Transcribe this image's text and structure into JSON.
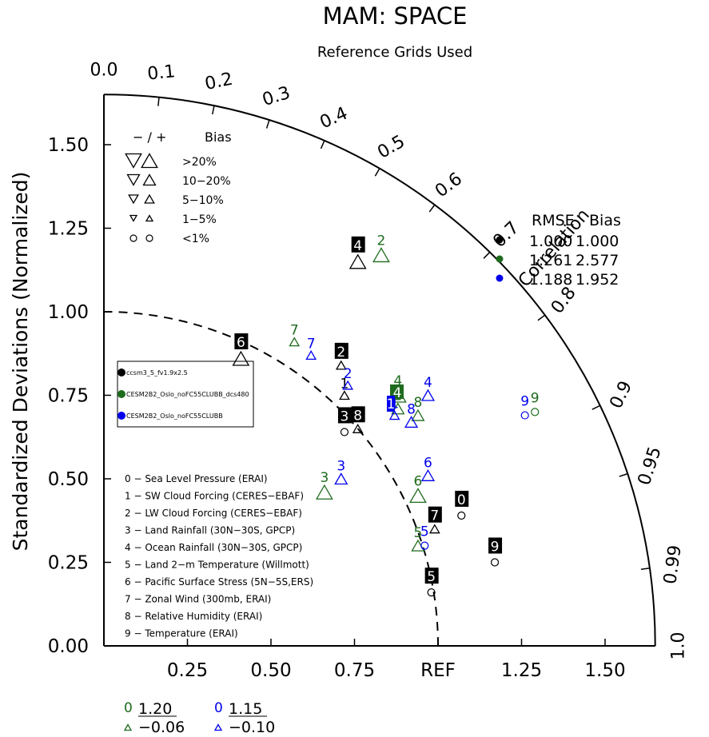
{
  "chart_data": {
    "type": "scatter",
    "subtype": "taylor-diagram",
    "title": "MAM: SPACE",
    "subtitle": "Reference Grids Used",
    "ylabel": "Standardized Deviations (Normalized)",
    "correlation_label": "Correlation",
    "x_ticks": [
      "0.25",
      "0.50",
      "0.75",
      "REF",
      "1.25",
      "1.50"
    ],
    "y_ticks": [
      "0.00",
      "0.25",
      "0.50",
      "0.75",
      "1.00",
      "1.25",
      "1.50"
    ],
    "corr_ticks": [
      "0.0",
      "0.1",
      "0.2",
      "0.3",
      "0.4",
      "0.5",
      "0.6",
      "0.7",
      "0.8",
      "0.9",
      "0.95",
      "0.99",
      "1.0"
    ],
    "max_std": 1.65,
    "bias_legend": {
      "header_symbols": "−  /  +",
      "header_label": "Bias",
      "rows": [
        ">20%",
        "10−20%",
        "5−10%",
        "1−5%",
        "<1%"
      ]
    },
    "rmse_table": {
      "headers": [
        "RMSE",
        "Bias"
      ],
      "rows": [
        {
          "rmse": "1.000",
          "bias": "1.000",
          "color": "#000000"
        },
        {
          "rmse": "1.261",
          "bias": "2.577",
          "color": "#1e6b1e"
        },
        {
          "rmse": "1.188",
          "bias": "1.952",
          "color": "#0000ee"
        }
      ]
    },
    "case_legend": [
      {
        "name": "ccsm3_5_fv1.9x2.5",
        "color": "#000000"
      },
      {
        "name": "CESM2B2_Oslo_noFC55CLUBB_dcs480",
        "color": "#1e6b1e"
      },
      {
        "name": "CESM2B2_Oslo_noFC55CLUBB",
        "color": "#0000ee"
      }
    ],
    "variables": [
      "0 − Sea Level Pressure (ERAI)",
      "1 − SW Cloud Forcing (CERES−EBAF)",
      "2 − LW Cloud Forcing (CERES−EBAF)",
      "3 − Land Rainfall (30N−30S, GPCP)",
      "4 − Ocean Rainfall (30N−30S, GPCP)",
      "5 − Land 2−m Temperature (Willmott)",
      "6 − Pacific Surface Stress (5N−5S,ERS)",
      "7 − Zonal Wind (300mb, ERAI)",
      "8 − Relative Humidity (ERAI)",
      "9 − Temperature (ERAI)"
    ],
    "series": [
      {
        "name": "ccsm3_5_fv1.9x2.5",
        "color": "#000000",
        "points": [
          {
            "label": "0",
            "x": 1.07,
            "y": 0.39,
            "marker": "circle",
            "size": 4
          },
          {
            "label": "1",
            "x": 0.72,
            "y": 0.75,
            "marker": "up",
            "size": 3
          },
          {
            "label": "2",
            "x": 0.71,
            "y": 0.84,
            "marker": "up",
            "size": 3
          },
          {
            "label": "3",
            "x": 0.72,
            "y": 0.64,
            "marker": "circle",
            "size": 4
          },
          {
            "label": "4",
            "x": 0.76,
            "y": 1.15,
            "marker": "up",
            "size": 1
          },
          {
            "label": "5",
            "x": 0.98,
            "y": 0.16,
            "marker": "circle",
            "size": 4
          },
          {
            "label": "6",
            "x": 0.41,
            "y": 0.86,
            "marker": "up",
            "size": 1
          },
          {
            "label": "7",
            "x": 0.99,
            "y": 0.35,
            "marker": "up",
            "size": 3
          },
          {
            "label": "8",
            "x": 0.76,
            "y": 0.65,
            "marker": "up",
            "size": 3
          },
          {
            "label": "9",
            "x": 1.17,
            "y": 0.25,
            "marker": "circle",
            "size": 4
          }
        ]
      },
      {
        "name": "CESM2B2_Oslo_noFC55CLUBB_dcs480",
        "color": "#1e6b1e",
        "points": [
          {
            "label": "1",
            "x": 0.88,
            "y": 0.71,
            "marker": "up",
            "size": 2
          },
          {
            "label": "2",
            "x": 0.83,
            "y": 1.17,
            "marker": "up",
            "size": 1
          },
          {
            "label": "3",
            "x": 0.66,
            "y": 0.46,
            "marker": "up",
            "size": 1
          },
          {
            "label": "4",
            "x": 0.88,
            "y": 0.75,
            "marker": "up",
            "size": 1
          },
          {
            "label": "5",
            "x": 0.94,
            "y": 0.3,
            "marker": "up",
            "size": 2
          },
          {
            "label": "6",
            "x": 0.94,
            "y": 0.45,
            "marker": "up",
            "size": 1
          },
          {
            "label": "7",
            "x": 0.57,
            "y": 0.91,
            "marker": "up",
            "size": 3
          },
          {
            "label": "8",
            "x": 0.94,
            "y": 0.69,
            "marker": "up",
            "size": 2
          },
          {
            "label": "9",
            "x": 1.29,
            "y": 0.7,
            "marker": "circle",
            "size": 4
          }
        ]
      },
      {
        "name": "CESM2B2_Oslo_noFC55CLUBB",
        "color": "#0000ee",
        "points": [
          {
            "label": "1",
            "x": 0.87,
            "y": 0.69,
            "marker": "up",
            "size": 3
          },
          {
            "label": "2",
            "x": 0.73,
            "y": 0.78,
            "marker": "up",
            "size": 3
          },
          {
            "label": "3",
            "x": 0.71,
            "y": 0.5,
            "marker": "up",
            "size": 2
          },
          {
            "label": "4",
            "x": 0.97,
            "y": 0.75,
            "marker": "up",
            "size": 2
          },
          {
            "label": "5",
            "x": 0.96,
            "y": 0.3,
            "marker": "circle",
            "size": 4
          },
          {
            "label": "6",
            "x": 0.97,
            "y": 0.51,
            "marker": "up",
            "size": 2
          },
          {
            "label": "7",
            "x": 0.62,
            "y": 0.87,
            "marker": "up",
            "size": 3
          },
          {
            "label": "8",
            "x": 0.92,
            "y": 0.67,
            "marker": "up",
            "size": 2
          },
          {
            "label": "9",
            "x": 1.26,
            "y": 0.69,
            "marker": "circle",
            "size": 4
          }
        ]
      }
    ],
    "black_box_labels": [
      "0",
      "2",
      "3",
      "4",
      "5",
      "6",
      "7",
      "8",
      "9"
    ],
    "footer": [
      {
        "number": "0",
        "value_top": "1.20",
        "value_bottom": "−0.06",
        "color": "#1e6b1e"
      },
      {
        "number": "0",
        "value_top": "1.15",
        "value_bottom": "−0.10",
        "color": "#0000ee"
      }
    ]
  }
}
